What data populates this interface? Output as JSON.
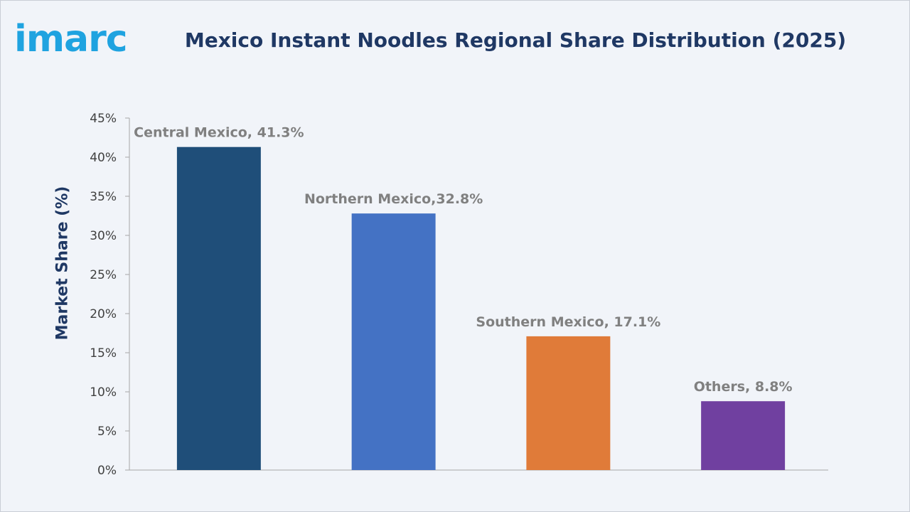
{
  "brand": {
    "logo_text": "imarc"
  },
  "chart_data": {
    "type": "bar",
    "title": "Mexico Instant Noodles Regional Share Distribution (2025)",
    "xlabel": "",
    "ylabel": "Market Share (%)",
    "ylim": [
      0,
      45
    ],
    "ytick_step": 5,
    "ytick_suffix": "%",
    "grid": false,
    "categories": [
      "Central Mexico",
      "Northern Mexico",
      "Southern Mexico",
      "Others"
    ],
    "values": [
      41.3,
      32.8,
      17.1,
      8.8
    ],
    "data_labels": [
      "Central Mexico, 41.3%",
      "Northern Mexico,32.8%",
      "Southern Mexico, 17.1%",
      "Others, 8.8%"
    ],
    "colors": [
      "#1f4e79",
      "#4472c4",
      "#e07b39",
      "#7040a0"
    ],
    "axis_color": "#a6a6a6"
  }
}
